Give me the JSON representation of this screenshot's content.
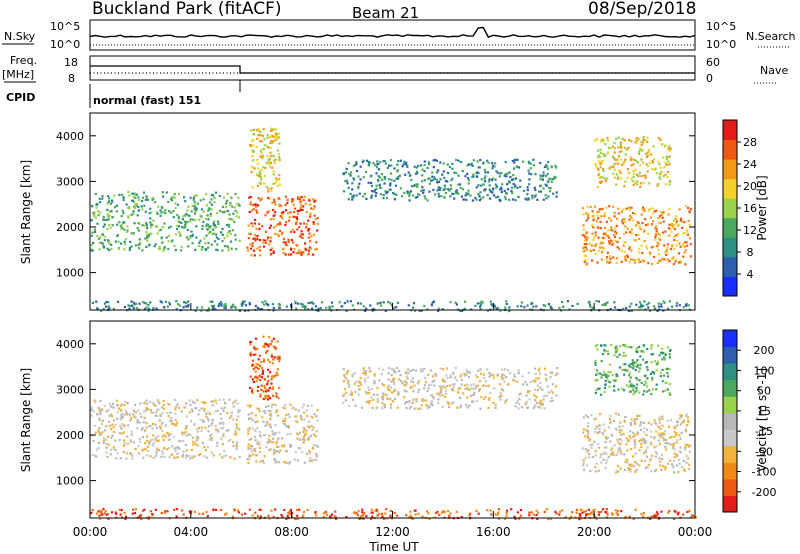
{
  "header": {
    "station": "Buckland Park (fitACF)",
    "beam": "Beam 21",
    "date": "08/Sep/2018"
  },
  "status_panels": {
    "nsky_label": "N.Sky",
    "nsearch_label": "N.Search",
    "log_ticks": [
      "10^5",
      "10^0"
    ],
    "freq_label": "Freq.",
    "freq_unit": "[MHz]",
    "freq_ticks": [
      "18",
      "8"
    ],
    "nave_label": "Nave",
    "nave_ticks": [
      "60",
      "0"
    ],
    "cpid_label": "CPID",
    "cpid_text": "normal (fast) 151"
  },
  "colors": {
    "power": [
      "#1a2fff",
      "#2d5fae",
      "#2e8f84",
      "#4ba85e",
      "#9ad14a",
      "#f0d22a",
      "#f29a18",
      "#ee5a12",
      "#e41b1b"
    ],
    "velocity": [
      "#e41b1b",
      "#ee5a12",
      "#f08a14",
      "#f2b33a",
      "#c8c8c8",
      "#b8b8b8",
      "#9ad14a",
      "#4ba85e",
      "#2e8f84",
      "#2d5fae",
      "#1a2fff"
    ]
  },
  "chart_data": [
    {
      "type": "heatmap",
      "title": "",
      "ylabel": "Slant Range [km]",
      "xlabel": "",
      "colorbar_label": "Power [dB]",
      "colorbar_ticks": [
        "28",
        "24",
        "20",
        "16",
        "12",
        "8",
        "4"
      ],
      "ylim": [
        180,
        4500
      ],
      "yticks": [
        "4000",
        "3000",
        "2000",
        "1000"
      ],
      "xlim": [
        0,
        24
      ],
      "echo_regions": [
        {
          "t0": 0.0,
          "t1": 5.9,
          "r0": 1500,
          "r1": 2800,
          "power_db": 14
        },
        {
          "t0": 6.2,
          "t1": 9.0,
          "r0": 1400,
          "r1": 2700,
          "power_db": 26
        },
        {
          "t0": 6.3,
          "t1": 7.5,
          "r0": 2800,
          "r1": 4200,
          "power_db": 18
        },
        {
          "t0": 10.0,
          "t1": 18.5,
          "r0": 2600,
          "r1": 3500,
          "power_db": 10
        },
        {
          "t0": 19.5,
          "t1": 23.8,
          "r0": 1200,
          "r1": 2500,
          "power_db": 24
        },
        {
          "t0": 20.0,
          "t1": 23.0,
          "r0": 2900,
          "r1": 4000,
          "power_db": 18
        },
        {
          "t0": 0.0,
          "t1": 24.0,
          "r0": 180,
          "r1": 400,
          "power_db": 8
        }
      ]
    },
    {
      "type": "heatmap",
      "title": "",
      "ylabel": "Slant Range [km]",
      "xlabel": "Time UT",
      "colorbar_label": "Velocity [m s^-1]",
      "colorbar_ticks": [
        "200",
        "100",
        "50",
        "15",
        "-15",
        "-50",
        "-100",
        "-200"
      ],
      "ylim": [
        180,
        4500
      ],
      "yticks": [
        "4000",
        "3000",
        "2000",
        "1000"
      ],
      "xlim": [
        0,
        24
      ],
      "xticks": [
        "00:00",
        "04:00",
        "08:00",
        "12:00",
        "16:00",
        "20:00",
        "00:00"
      ],
      "echo_regions": [
        {
          "t0": 0.0,
          "t1": 5.9,
          "r0": 1500,
          "r1": 2800,
          "velocity": 0
        },
        {
          "t0": 6.2,
          "t1": 9.0,
          "r0": 1400,
          "r1": 2700,
          "velocity": 0
        },
        {
          "t0": 6.3,
          "t1": 7.5,
          "r0": 2800,
          "r1": 4200,
          "velocity": -50
        },
        {
          "t0": 10.0,
          "t1": 18.5,
          "r0": 2600,
          "r1": 3500,
          "velocity": 0
        },
        {
          "t0": 19.5,
          "t1": 23.8,
          "r0": 1200,
          "r1": 2500,
          "velocity": 0
        },
        {
          "t0": 20.0,
          "t1": 23.0,
          "r0": 2900,
          "r1": 4000,
          "velocity": 50
        },
        {
          "t0": 0.0,
          "t1": 24.0,
          "r0": 180,
          "r1": 400,
          "velocity": -50
        }
      ]
    }
  ]
}
